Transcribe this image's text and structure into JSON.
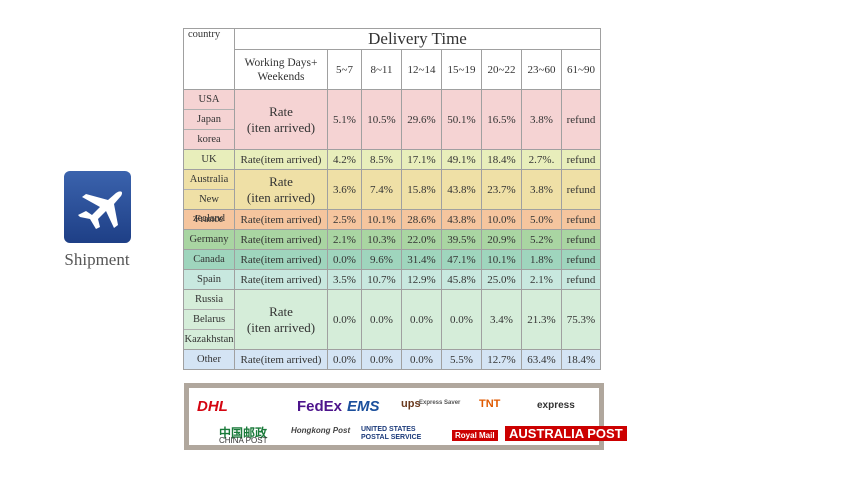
{
  "sidebar": {
    "label": "Shipment"
  },
  "table": {
    "header": {
      "country": "country",
      "title": "Delivery Time",
      "working_days": [
        "Working Days+",
        "Weekends"
      ],
      "ranges": [
        "5~7",
        "8~11",
        "12~14",
        "15~19",
        "20~22",
        "23~60",
        "61~90"
      ]
    },
    "rows": [
      {
        "countries": [
          "USA",
          "Japan",
          "korea"
        ],
        "rate": [
          "Rate",
          "(iten arrived)"
        ],
        "color": "#f5d3d3",
        "values": [
          "5.1%",
          "10.5%",
          "29.6%",
          "50.1%",
          "16.5%",
          "3.8%",
          "refund"
        ]
      },
      {
        "countries": [
          "UK"
        ],
        "rate": [
          "Rate(item arrived)"
        ],
        "color": "#e8eebb",
        "values": [
          "4.2%",
          "8.5%",
          "17.1%",
          "49.1%",
          "18.4%",
          "2.7%.",
          "refund"
        ]
      },
      {
        "countries": [
          "Australia",
          "New zealand"
        ],
        "rate": [
          "Rate",
          "(iten arrived)"
        ],
        "color": "#efe0a6",
        "values": [
          "3.6%",
          "7.4%",
          "15.8%",
          "43.8%",
          "23.7%",
          "3.8%",
          "refund"
        ]
      },
      {
        "countries": [
          "France"
        ],
        "rate": [
          "Rate(item arrived)"
        ],
        "color": "#f5c59e",
        "values": [
          "2.5%",
          "10.1%",
          "28.6%",
          "43.8%",
          "10.0%",
          "5.0%",
          "refund"
        ]
      },
      {
        "countries": [
          "Germany"
        ],
        "rate": [
          "Rate(item arrived)"
        ],
        "color": "#a9d5a2",
        "values": [
          "2.1%",
          "10.3%",
          "22.0%",
          "39.5%",
          "20.9%",
          "5.2%",
          "refund"
        ]
      },
      {
        "countries": [
          "Canada"
        ],
        "rate": [
          "Rate(item arrived)"
        ],
        "color": "#9fd5bd",
        "values": [
          "0.0%",
          "9.6%",
          "31.4%",
          "47.1%",
          "10.1%",
          "1.8%",
          "refund"
        ]
      },
      {
        "countries": [
          "Spain"
        ],
        "rate": [
          "Rate(item arrived)"
        ],
        "color": "#c8e8df",
        "values": [
          "3.5%",
          "10.7%",
          "12.9%",
          "45.8%",
          "25.0%",
          "2.1%",
          "refund"
        ]
      },
      {
        "countries": [
          "Russia",
          "Belarus",
          "Kazakhstan"
        ],
        "rate": [
          "Rate",
          "(iten arrived)"
        ],
        "color": "#d5edd9",
        "values": [
          "0.0%",
          "0.0%",
          "0.0%",
          "0.0%",
          "3.4%",
          "21.3%",
          "75.3%"
        ]
      },
      {
        "countries": [
          "Other"
        ],
        "rate": [
          "Rate(item arrived)"
        ],
        "color": "#d4e4f4",
        "values": [
          "0.0%",
          "0.0%",
          "0.0%",
          "5.5%",
          "12.7%",
          "63.4%",
          "18.4%"
        ]
      }
    ]
  },
  "logos": [
    "DHL",
    "FedEx",
    "EMS",
    "ups",
    "Express Saver",
    "TNT",
    "express",
    "中国邮政",
    "CHINA POST",
    "Hongkong Post",
    "UNITED STATES POSTAL SERVICE",
    "Royal Mail",
    "AUSTRALIA POST"
  ]
}
